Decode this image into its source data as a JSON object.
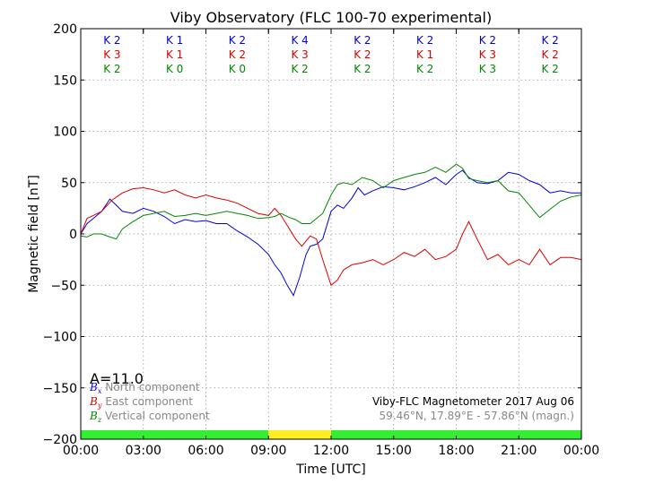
{
  "chart_data": {
    "type": "line",
    "title": "Viby Observatory (FLC 100-70 experimental)",
    "xlabel": "Time [UTC]",
    "ylabel": "Magnetic field [nT]",
    "xlim": [
      0,
      24
    ],
    "ylim": [
      -200,
      200
    ],
    "x_ticks": [
      "00:00",
      "03:00",
      "06:00",
      "09:00",
      "12:00",
      "15:00",
      "18:00",
      "21:00",
      "00:00"
    ],
    "y_ticks": [
      200,
      150,
      100,
      50,
      0,
      -50,
      -100,
      -150,
      -200
    ],
    "grid": true,
    "k_index": {
      "north": [
        "K 2",
        "K 1",
        "K 2",
        "K 4",
        "K 2",
        "K 2",
        "K 2",
        "K 2"
      ],
      "east": [
        "K 3",
        "K 1",
        "K 2",
        "K 3",
        "K 2",
        "K 1",
        "K 3",
        "K 2"
      ],
      "vertical": [
        "K 2",
        "K 0",
        "K 0",
        "K 2",
        "K 2",
        "K 2",
        "K 3",
        "K 2"
      ]
    },
    "activity_bar": [
      {
        "from": 0,
        "to": 9,
        "color": "#33ee33"
      },
      {
        "from": 9,
        "to": 12,
        "color": "#ffee22"
      },
      {
        "from": 12,
        "to": 24,
        "color": "#33ee33"
      }
    ],
    "a_index": "A=11.0",
    "legend": [
      {
        "symbol": "B",
        "sub": "x",
        "label": "North component",
        "color": "#0000dd"
      },
      {
        "symbol": "B",
        "sub": "y",
        "label": "East component",
        "color": "#dd0000"
      },
      {
        "symbol": "B",
        "sub": "z",
        "label": "Vertical component",
        "color": "#008800"
      }
    ],
    "info_line1": "Viby-FLC Magnetometer 2017 Aug 06",
    "info_line2": "59.46°N, 17.89°E - 57.86°N (magn.)",
    "series": [
      {
        "name": "North component",
        "color": "#0000dd",
        "x": [
          0,
          0.3,
          0.6,
          1,
          1.4,
          1.7,
          2,
          2.5,
          3,
          3.5,
          4,
          4.5,
          5,
          5.5,
          6,
          6.5,
          7,
          7.5,
          8,
          8.5,
          9,
          9.3,
          9.6,
          9.9,
          10.2,
          10.5,
          10.8,
          11,
          11.3,
          11.6,
          12,
          12.3,
          12.6,
          13,
          13.3,
          13.6,
          14,
          14.5,
          15,
          15.5,
          16,
          16.5,
          17,
          17.5,
          18,
          18.3,
          18.6,
          19,
          19.5,
          20,
          20.5,
          21,
          21.5,
          22,
          22.5,
          23,
          23.5,
          24
        ],
        "y": [
          0,
          10,
          15,
          22,
          34,
          28,
          22,
          20,
          25,
          22,
          17,
          10,
          14,
          12,
          13,
          10,
          10,
          3,
          -3,
          -10,
          -20,
          -30,
          -38,
          -50,
          -60,
          -42,
          -20,
          -12,
          -10,
          -5,
          22,
          28,
          25,
          35,
          45,
          38,
          42,
          46,
          45,
          43,
          46,
          50,
          55,
          48,
          58,
          62,
          55,
          50,
          49,
          52,
          60,
          58,
          52,
          48,
          40,
          42,
          40,
          40
        ]
      },
      {
        "name": "East component",
        "color": "#dd0000",
        "x": [
          0,
          0.3,
          0.6,
          1,
          1.5,
          2,
          2.5,
          3,
          3.5,
          4,
          4.5,
          5,
          5.5,
          6,
          6.5,
          7,
          7.5,
          8,
          8.5,
          9,
          9.3,
          9.6,
          10,
          10.3,
          10.6,
          11,
          11.3,
          11.6,
          12,
          12.3,
          12.6,
          13,
          13.5,
          14,
          14.5,
          15,
          15.5,
          16,
          16.5,
          17,
          17.5,
          18,
          18.3,
          18.6,
          19,
          19.5,
          20,
          20.5,
          21,
          21.5,
          22,
          22.5,
          23,
          23.5,
          24
        ],
        "y": [
          0,
          15,
          18,
          22,
          33,
          40,
          44,
          45,
          43,
          40,
          43,
          38,
          35,
          38,
          35,
          33,
          30,
          25,
          20,
          18,
          25,
          18,
          5,
          -5,
          -12,
          -2,
          -5,
          -25,
          -50,
          -45,
          -35,
          -30,
          -28,
          -25,
          -30,
          -25,
          -18,
          -22,
          -15,
          -25,
          -22,
          -15,
          0,
          12,
          -5,
          -25,
          -20,
          -30,
          -25,
          -30,
          -15,
          -30,
          -23,
          -23,
          -25
        ]
      },
      {
        "name": "Vertical component",
        "color": "#008800",
        "x": [
          0,
          0.3,
          0.6,
          1,
          1.4,
          1.7,
          2,
          2.5,
          3,
          3.5,
          4,
          4.5,
          5,
          5.5,
          6,
          6.5,
          7,
          7.5,
          8,
          8.5,
          9,
          9.3,
          9.6,
          10,
          10.3,
          10.6,
          11,
          11.3,
          11.6,
          12,
          12.3,
          12.6,
          13,
          13.5,
          14,
          14.5,
          15,
          15.5,
          16,
          16.5,
          17,
          17.5,
          18,
          18.3,
          18.6,
          19,
          19.5,
          20,
          20.5,
          21,
          21.5,
          22,
          22.5,
          23,
          23.5,
          24
        ],
        "y": [
          -2,
          -3,
          0,
          0,
          -3,
          -5,
          5,
          12,
          18,
          20,
          22,
          17,
          18,
          20,
          18,
          20,
          22,
          20,
          18,
          15,
          16,
          17,
          20,
          16,
          14,
          10,
          10,
          15,
          20,
          38,
          48,
          50,
          48,
          55,
          52,
          45,
          52,
          55,
          58,
          60,
          65,
          60,
          68,
          64,
          54,
          52,
          50,
          52,
          42,
          40,
          28,
          16,
          24,
          32,
          36,
          38
        ]
      }
    ]
  }
}
